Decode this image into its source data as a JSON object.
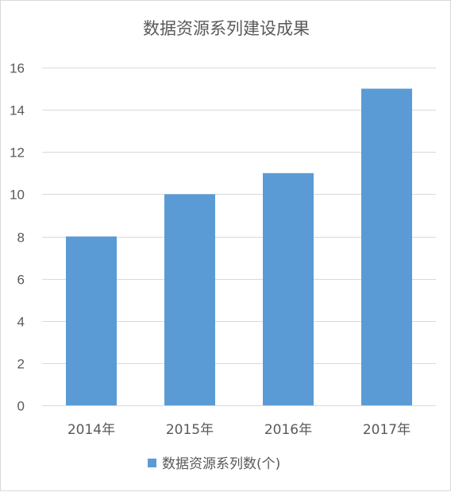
{
  "chart_data": {
    "type": "bar",
    "title": "数据资源系列建设成果",
    "categories": [
      "2014年",
      "2015年",
      "2016年",
      "2017年"
    ],
    "series": [
      {
        "name": "数据资源系列数(个)",
        "values": [
          8,
          10,
          11,
          15
        ]
      }
    ],
    "ylim": [
      0,
      16
    ],
    "yticks": [
      0,
      2,
      4,
      6,
      8,
      10,
      12,
      14,
      16
    ],
    "grid": true,
    "legend": "bottom",
    "colors": {
      "bar": "#5b9bd5",
      "grid": "#d9d9d9",
      "text": "#595959"
    }
  }
}
